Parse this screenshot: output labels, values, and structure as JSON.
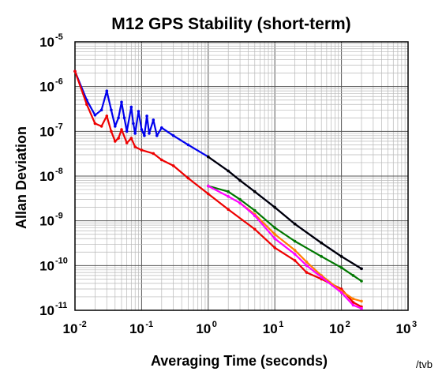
{
  "chart_data": {
    "type": "line",
    "title": "M12 GPS Stability (short-term)",
    "xlabel": "Averaging Time (seconds)",
    "ylabel": "Allan Deviation",
    "x_scale": "log",
    "y_scale": "log",
    "xlim": [
      0.01,
      1000
    ],
    "ylim": [
      1e-11,
      1e-05
    ],
    "grid": true,
    "x_ticks": [
      {
        "base": "10",
        "exp": "-2",
        "value": 0.01
      },
      {
        "base": "10",
        "exp": "-1",
        "value": 0.1
      },
      {
        "base": "10",
        "exp": "0",
        "value": 1
      },
      {
        "base": "10",
        "exp": "1",
        "value": 10
      },
      {
        "base": "10",
        "exp": "2",
        "value": 100
      },
      {
        "base": "10",
        "exp": "3",
        "value": 1000
      }
    ],
    "y_ticks": [
      {
        "base": "10",
        "exp": "-5",
        "value": 1e-05
      },
      {
        "base": "10",
        "exp": "-6",
        "value": 1e-06
      },
      {
        "base": "10",
        "exp": "-7",
        "value": 1e-07
      },
      {
        "base": "10",
        "exp": "-8",
        "value": 1e-08
      },
      {
        "base": "10",
        "exp": "-9",
        "value": 1e-09
      },
      {
        "base": "10",
        "exp": "-10",
        "value": 1e-10
      },
      {
        "base": "10",
        "exp": "-11",
        "value": 1e-11
      }
    ],
    "series": [
      {
        "color": "#0000ee",
        "points": [
          [
            0.01,
            2.2e-06
          ],
          [
            0.015,
            5e-07
          ],
          [
            0.02,
            2.3e-07
          ],
          [
            0.025,
            3e-07
          ],
          [
            0.03,
            8e-07
          ],
          [
            0.035,
            3e-07
          ],
          [
            0.04,
            1.3e-07
          ],
          [
            0.045,
            2e-07
          ],
          [
            0.05,
            4.5e-07
          ],
          [
            0.055,
            2e-07
          ],
          [
            0.06,
            1e-07
          ],
          [
            0.07,
            3.5e-07
          ],
          [
            0.075,
            1.5e-07
          ],
          [
            0.08,
            9e-08
          ],
          [
            0.09,
            2.8e-07
          ],
          [
            0.1,
            1.1e-07
          ],
          [
            0.11,
            8e-08
          ],
          [
            0.12,
            2.2e-07
          ],
          [
            0.13,
            9e-08
          ],
          [
            0.15,
            1.8e-07
          ],
          [
            0.17,
            8e-08
          ],
          [
            0.2,
            1.2e-07
          ],
          [
            0.3,
            8e-08
          ],
          [
            0.5,
            5e-08
          ],
          [
            1,
            2.7e-08
          ],
          [
            2,
            1.3e-08
          ],
          [
            3,
            8e-09
          ],
          [
            5,
            4.5e-09
          ],
          [
            10,
            2e-09
          ],
          [
            20,
            8.5e-10
          ],
          [
            50,
            3.2e-10
          ],
          [
            100,
            1.6e-10
          ],
          [
            200,
            8.5e-11
          ]
        ]
      },
      {
        "color": "#000000",
        "points": [
          [
            1,
            2.7e-08
          ],
          [
            2,
            1.3e-08
          ],
          [
            3,
            8e-09
          ],
          [
            5,
            4.5e-09
          ],
          [
            10,
            2e-09
          ],
          [
            20,
            8.5e-10
          ],
          [
            50,
            3.2e-10
          ],
          [
            100,
            1.6e-10
          ],
          [
            200,
            8.5e-11
          ]
        ]
      },
      {
        "color": "#ee0000",
        "points": [
          [
            0.01,
            2.2e-06
          ],
          [
            0.015,
            4e-07
          ],
          [
            0.02,
            1.5e-07
          ],
          [
            0.025,
            1.3e-07
          ],
          [
            0.03,
            2.2e-07
          ],
          [
            0.035,
            1e-07
          ],
          [
            0.04,
            6e-08
          ],
          [
            0.045,
            7e-08
          ],
          [
            0.05,
            1.1e-07
          ],
          [
            0.06,
            5.5e-08
          ],
          [
            0.07,
            7e-08
          ],
          [
            0.08,
            4.5e-08
          ],
          [
            0.1,
            3.8e-08
          ],
          [
            0.15,
            3.2e-08
          ],
          [
            0.2,
            2.3e-08
          ],
          [
            0.3,
            1.7e-08
          ],
          [
            0.5,
            9e-09
          ],
          [
            1,
            4e-09
          ],
          [
            2,
            1.8e-09
          ],
          [
            5,
            6.5e-10
          ],
          [
            10,
            2.5e-10
          ],
          [
            20,
            1.3e-10
          ],
          [
            30,
            7e-11
          ],
          [
            50,
            5e-11
          ],
          [
            100,
            3e-11
          ],
          [
            150,
            1.5e-11
          ],
          [
            200,
            1.2e-11
          ]
        ]
      },
      {
        "color": "#007700",
        "points": [
          [
            1,
            6e-09
          ],
          [
            2,
            4.5e-09
          ],
          [
            3,
            3e-09
          ],
          [
            5,
            1.7e-09
          ],
          [
            10,
            7e-10
          ],
          [
            20,
            3.5e-10
          ],
          [
            50,
            1.6e-10
          ],
          [
            100,
            9e-11
          ],
          [
            150,
            6e-11
          ],
          [
            200,
            4.5e-11
          ]
        ]
      },
      {
        "color": "#ff8000",
        "points": [
          [
            3,
            2.5e-09
          ],
          [
            5,
            1.4e-09
          ],
          [
            10,
            5e-10
          ],
          [
            20,
            2.2e-10
          ],
          [
            30,
            1.2e-10
          ],
          [
            50,
            6e-11
          ],
          [
            100,
            2.7e-11
          ],
          [
            150,
            1.8e-11
          ],
          [
            200,
            1.6e-11
          ]
        ]
      },
      {
        "color": "#ff00ff",
        "points": [
          [
            1,
            6e-09
          ],
          [
            2,
            3.5e-09
          ],
          [
            3,
            2.5e-09
          ],
          [
            5,
            1.3e-09
          ],
          [
            10,
            4e-10
          ],
          [
            20,
            1.8e-10
          ],
          [
            30,
            1e-10
          ],
          [
            50,
            5.5e-11
          ],
          [
            100,
            2.5e-11
          ],
          [
            150,
            1.3e-11
          ],
          [
            200,
            1.1e-11
          ]
        ]
      }
    ]
  },
  "credit": "/tvb"
}
